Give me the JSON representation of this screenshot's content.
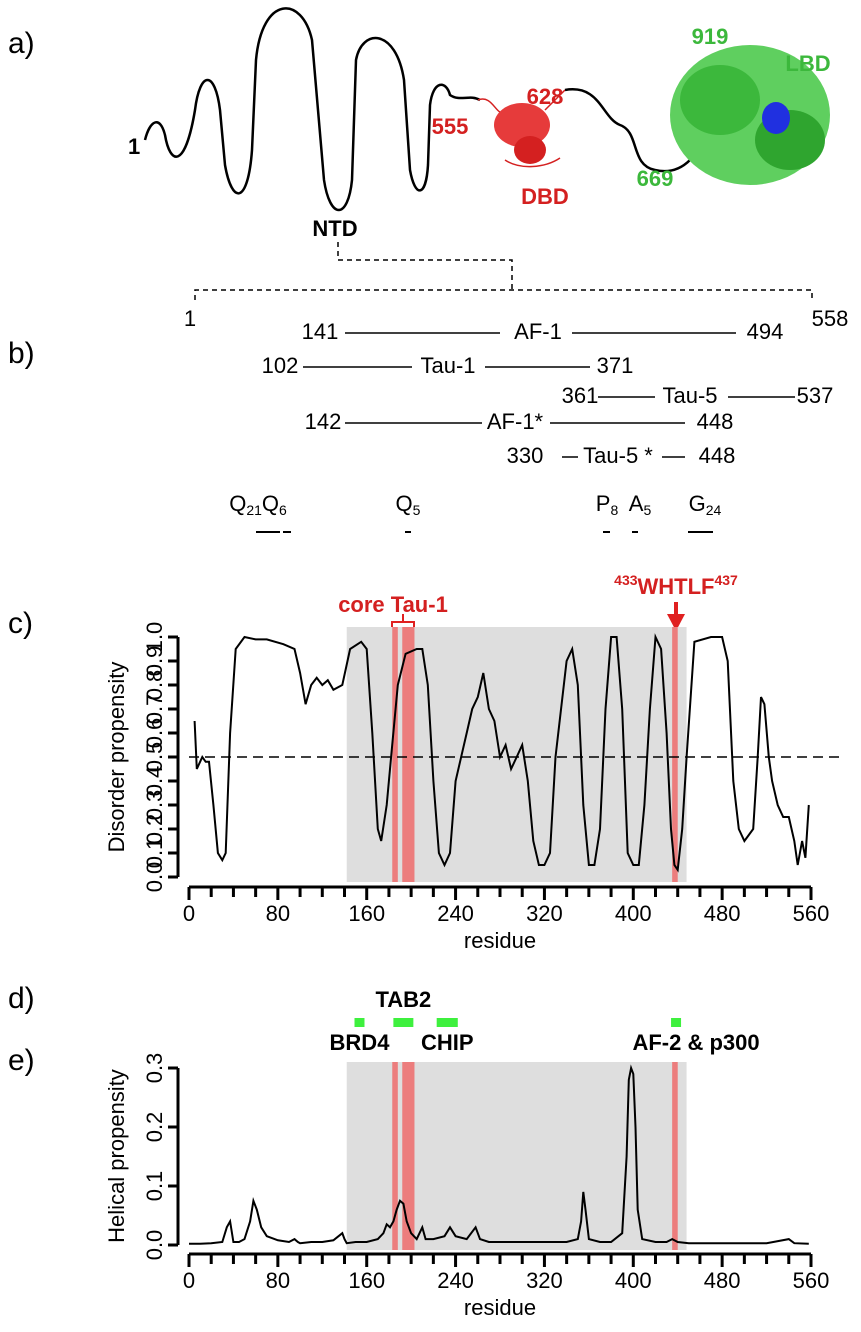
{
  "panel_labels": [
    "a)",
    "b)",
    "c)",
    "d)",
    "e)"
  ],
  "panel_a": {
    "ntd_start": 1,
    "dbd_start": 555,
    "dbd_end": 628,
    "lbd_start": 669,
    "lbd_end": 919,
    "ntd_label": "NTD",
    "dbd_label": "DBD",
    "lbd_label": "LBD"
  },
  "panel_b": {
    "range_start": 1,
    "range_end": 558,
    "segments": [
      {
        "start": 141,
        "label": "AF-1",
        "end": 494
      },
      {
        "start": 102,
        "label": "Tau-1",
        "end": 371
      },
      {
        "start": 361,
        "label": "Tau-5",
        "end": 537
      },
      {
        "start": 142,
        "label": "AF-1*",
        "end": 448
      },
      {
        "start": 330,
        "label": "Tau-5 *",
        "end": 448
      }
    ],
    "repeats": [
      {
        "letter": "Q",
        "count": 21
      },
      {
        "letter": "Q",
        "count": 6
      },
      {
        "letter": "Q",
        "count": 5
      },
      {
        "letter": "P",
        "count": 8
      },
      {
        "letter": "A",
        "count": 5
      },
      {
        "letter": "G",
        "count": 24
      }
    ]
  },
  "chart_data": [
    {
      "type": "line",
      "y_label": "Disorder propensity",
      "x_label": "residue",
      "color": "#000000",
      "x": [
        5,
        7,
        12,
        15,
        18,
        22,
        26,
        30,
        33,
        37,
        42,
        50,
        60,
        70,
        85,
        95,
        100,
        105,
        110,
        115,
        120,
        125,
        130,
        138,
        145,
        155,
        160,
        165,
        170,
        173,
        178,
        182,
        188,
        195,
        205,
        210,
        215,
        220,
        225,
        230,
        235,
        240,
        250,
        255,
        260,
        265,
        270,
        275,
        280,
        285,
        290,
        295,
        300,
        305,
        310,
        315,
        320,
        325,
        330,
        340,
        345,
        350,
        355,
        360,
        365,
        370,
        375,
        380,
        385,
        390,
        395,
        400,
        405,
        410,
        415,
        420,
        425,
        430,
        434,
        437,
        440,
        444,
        448,
        455,
        470,
        480,
        485,
        490,
        495,
        500,
        508,
        512,
        515,
        518,
        522,
        525,
        530,
        535,
        540,
        545,
        548,
        552,
        555,
        558
      ],
      "values": [
        0.65,
        0.45,
        0.5,
        0.48,
        0.48,
        0.3,
        0.1,
        0.07,
        0.1,
        0.6,
        0.95,
        1.0,
        0.99,
        0.99,
        0.97,
        0.95,
        0.85,
        0.72,
        0.8,
        0.83,
        0.8,
        0.82,
        0.78,
        0.8,
        0.95,
        0.98,
        0.95,
        0.6,
        0.2,
        0.15,
        0.3,
        0.5,
        0.8,
        0.93,
        0.95,
        0.95,
        0.8,
        0.4,
        0.1,
        0.05,
        0.1,
        0.4,
        0.6,
        0.7,
        0.75,
        0.85,
        0.7,
        0.65,
        0.5,
        0.55,
        0.45,
        0.5,
        0.55,
        0.4,
        0.15,
        0.05,
        0.05,
        0.1,
        0.5,
        0.9,
        0.95,
        0.8,
        0.3,
        0.05,
        0.05,
        0.2,
        0.7,
        1.0,
        1.0,
        0.7,
        0.1,
        0.05,
        0.05,
        0.3,
        0.7,
        1.0,
        0.95,
        0.6,
        0.2,
        0.05,
        0.03,
        0.2,
        0.5,
        0.98,
        1.0,
        1.0,
        0.9,
        0.4,
        0.2,
        0.15,
        0.2,
        0.5,
        0.75,
        0.72,
        0.5,
        0.4,
        0.3,
        0.25,
        0.25,
        0.15,
        0.05,
        0.15,
        0.08,
        0.3
      ],
      "xlim": [
        0,
        560
      ],
      "xticks": [
        0,
        80,
        160,
        240,
        320,
        400,
        480,
        560
      ],
      "x_minor_ticks": [
        20,
        40,
        60,
        100,
        120,
        140,
        180,
        200,
        220,
        260,
        280,
        300,
        340,
        360,
        380,
        420,
        440,
        460,
        500,
        520,
        540
      ],
      "ylim": [
        0,
        1
      ],
      "yticks": [
        {
          "value": 0,
          "label": "0.0"
        },
        0.1,
        0.2,
        0.3,
        0.4,
        0.5,
        0.6,
        0.7,
        0.8,
        0.9,
        {
          "value": 1,
          "label": "1.0"
        }
      ],
      "reference_line": 0.5,
      "shaded_range": [
        142,
        448
      ],
      "highlight_ranges": [
        [
          183,
          188
        ],
        [
          192,
          203
        ],
        [
          435,
          440
        ]
      ],
      "core_label": "core Tau-1",
      "motif": {
        "start": 433,
        "sequence": "WHTLF",
        "end": 437
      }
    },
    {
      "type": "line",
      "y_label": "Helical propensity",
      "x_label": "residue",
      "color": "#000000",
      "x": [
        0,
        10,
        20,
        30,
        34,
        37,
        40,
        45,
        50,
        55,
        58,
        61,
        65,
        70,
        80,
        90,
        95,
        98,
        100,
        110,
        120,
        130,
        138,
        140,
        142,
        150,
        160,
        170,
        175,
        178,
        181,
        184,
        187,
        190,
        193,
        196,
        200,
        205,
        210,
        213,
        220,
        230,
        235,
        240,
        250,
        258,
        262,
        270,
        280,
        300,
        320,
        340,
        350,
        353,
        355,
        357,
        360,
        370,
        380,
        390,
        394,
        396,
        398,
        400,
        402,
        404,
        408,
        420,
        430,
        435,
        440,
        450,
        480,
        520,
        540,
        545,
        558
      ],
      "values": [
        0.002,
        0.002,
        0.003,
        0.005,
        0.03,
        0.04,
        0.005,
        0.005,
        0.01,
        0.04,
        0.075,
        0.06,
        0.03,
        0.015,
        0.008,
        0.005,
        0.01,
        0.005,
        0.003,
        0.005,
        0.005,
        0.008,
        0.02,
        0.01,
        0.003,
        0.005,
        0.005,
        0.01,
        0.02,
        0.035,
        0.03,
        0.04,
        0.06,
        0.075,
        0.07,
        0.04,
        0.02,
        0.01,
        0.03,
        0.01,
        0.01,
        0.015,
        0.03,
        0.015,
        0.01,
        0.03,
        0.01,
        0.005,
        0.005,
        0.005,
        0.005,
        0.005,
        0.01,
        0.04,
        0.09,
        0.06,
        0.01,
        0.005,
        0.005,
        0.02,
        0.15,
        0.28,
        0.3,
        0.29,
        0.2,
        0.06,
        0.01,
        0.005,
        0.005,
        0.01,
        0.005,
        0.003,
        0.003,
        0.003,
        0.01,
        0.003,
        0.002
      ],
      "xlim": [
        0,
        560
      ],
      "xticks": [
        0,
        80,
        160,
        240,
        320,
        400,
        480,
        560
      ],
      "x_minor_ticks": [
        20,
        40,
        60,
        100,
        120,
        140,
        180,
        200,
        220,
        260,
        280,
        300,
        340,
        360,
        380,
        420,
        440,
        460,
        500,
        520,
        540
      ],
      "ylim": [
        0,
        0.3
      ],
      "yticks": [
        {
          "value": 0,
          "label": "0.0"
        },
        0.1,
        0.2,
        0.3
      ],
      "shaded_range": [
        142,
        448
      ],
      "highlight_ranges": [
        [
          183,
          188
        ],
        [
          192,
          203
        ],
        [
          435,
          440
        ]
      ],
      "regions": [
        {
          "name": "BRD4",
          "range": [
            149,
            158
          ]
        },
        {
          "name": "TAB2",
          "range": [
            184,
            202
          ]
        },
        {
          "name": "CHIP",
          "range": [
            223,
            242
          ]
        },
        {
          "name": "AF-2 & p300",
          "range": [
            434,
            443
          ]
        }
      ]
    }
  ]
}
